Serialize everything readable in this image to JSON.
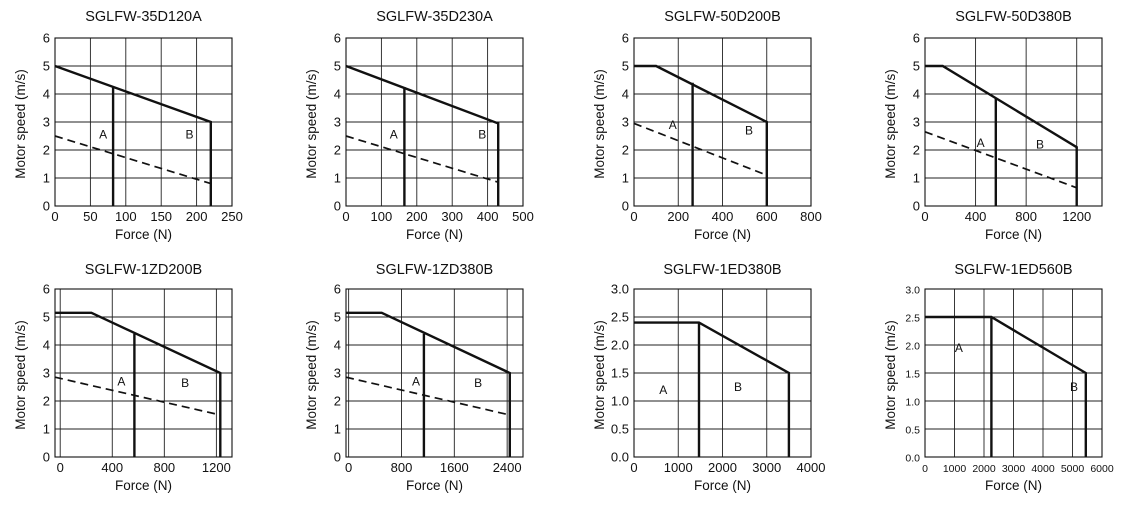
{
  "xlabel": "Force (N)",
  "ylabel": "Motor speed (m/s)",
  "chart_data": [
    {
      "type": "line",
      "title": "SGLFW-35D120A",
      "xlabel": "Force (N)",
      "ylabel": "Motor speed (m/s)",
      "xlim": [
        0,
        250
      ],
      "ylim": [
        0,
        6
      ],
      "xticks": [
        0,
        50,
        100,
        150,
        200,
        250
      ],
      "yticks": [
        0,
        1,
        2,
        3,
        4,
        5,
        6
      ],
      "ytick_decimals": 0,
      "grid": true,
      "tick_font_size": 13,
      "series": [
        {
          "style": "solid",
          "points": [
            [
              0,
              5
            ],
            [
              220,
              3
            ],
            [
              220,
              0
            ]
          ]
        },
        {
          "style": "solid",
          "points": [
            [
              82,
              4.25
            ],
            [
              82,
              0
            ]
          ]
        },
        {
          "style": "dashed",
          "points": [
            [
              0,
              2.5
            ],
            [
              220,
              0.8
            ]
          ]
        }
      ],
      "regions": [
        {
          "label": "A",
          "x": 68,
          "y": 2.55
        },
        {
          "label": "B",
          "x": 190,
          "y": 2.55
        }
      ]
    },
    {
      "type": "line",
      "title": "SGLFW-35D230A",
      "xlabel": "Force (N)",
      "ylabel": "Motor speed (m/s)",
      "xlim": [
        0,
        500
      ],
      "ylim": [
        0,
        6
      ],
      "xticks": [
        0,
        100,
        200,
        300,
        400,
        500
      ],
      "yticks": [
        0,
        1,
        2,
        3,
        4,
        5,
        6
      ],
      "ytick_decimals": 0,
      "grid": true,
      "tick_font_size": 13,
      "series": [
        {
          "style": "solid",
          "points": [
            [
              0,
              5
            ],
            [
              430,
              2.95
            ],
            [
              430,
              0
            ]
          ]
        },
        {
          "style": "solid",
          "points": [
            [
              165,
              4.25
            ],
            [
              165,
              0
            ]
          ]
        },
        {
          "style": "dashed",
          "points": [
            [
              0,
              2.5
            ],
            [
              430,
              0.85
            ]
          ]
        }
      ],
      "regions": [
        {
          "label": "A",
          "x": 135,
          "y": 2.55
        },
        {
          "label": "B",
          "x": 385,
          "y": 2.55
        }
      ]
    },
    {
      "type": "line",
      "title": "SGLFW-50D200B",
      "xlabel": "Force (N)",
      "ylabel": "Motor speed (m/s)",
      "xlim": [
        0,
        800
      ],
      "ylim": [
        0,
        6
      ],
      "xticks": [
        0,
        200,
        400,
        600,
        800
      ],
      "yticks": [
        0,
        1,
        2,
        3,
        4,
        5,
        6
      ],
      "ytick_decimals": 0,
      "grid": true,
      "tick_font_size": 13,
      "series": [
        {
          "style": "solid",
          "points": [
            [
              0,
              5
            ],
            [
              100,
              5
            ],
            [
              600,
              3
            ],
            [
              600,
              0
            ]
          ]
        },
        {
          "style": "solid",
          "points": [
            [
              265,
              4.4
            ],
            [
              265,
              0
            ]
          ]
        },
        {
          "style": "dashed",
          "points": [
            [
              0,
              2.95
            ],
            [
              600,
              1.1
            ]
          ]
        }
      ],
      "regions": [
        {
          "label": "A",
          "x": 175,
          "y": 2.9
        },
        {
          "label": "B",
          "x": 520,
          "y": 2.7
        }
      ]
    },
    {
      "type": "line",
      "title": "SGLFW-50D380B",
      "xlabel": "Force (N)",
      "ylabel": "Motor speed (m/s)",
      "xlim": [
        0,
        1400
      ],
      "ylim": [
        0,
        6
      ],
      "xticks": [
        0,
        400,
        800,
        1200
      ],
      "yticks": [
        0,
        1,
        2,
        3,
        4,
        5,
        6
      ],
      "ytick_decimals": 0,
      "grid": true,
      "tick_font_size": 13,
      "series": [
        {
          "style": "solid",
          "points": [
            [
              0,
              5
            ],
            [
              140,
              5
            ],
            [
              1200,
              2.1
            ],
            [
              1200,
              0
            ]
          ]
        },
        {
          "style": "solid",
          "points": [
            [
              560,
              3.85
            ],
            [
              560,
              0
            ]
          ]
        },
        {
          "style": "dashed",
          "points": [
            [
              0,
              2.65
            ],
            [
              1200,
              0.65
            ]
          ]
        }
      ],
      "regions": [
        {
          "label": "A",
          "x": 440,
          "y": 2.25
        },
        {
          "label": "B",
          "x": 910,
          "y": 2.2
        }
      ]
    },
    {
      "type": "line",
      "title": "SGLFW-1ZD200B",
      "xlabel": "Force (N)",
      "ylabel": "Motor speed (m/s)",
      "xlim": [
        -40,
        1320
      ],
      "ylim": [
        0,
        6
      ],
      "xticks": [
        0,
        400,
        800,
        1200
      ],
      "yticks": [
        0,
        1,
        2,
        3,
        4,
        5,
        6
      ],
      "ytick_decimals": 0,
      "grid": true,
      "tick_font_size": 13,
      "series": [
        {
          "style": "solid",
          "points": [
            [
              -40,
              5.15
            ],
            [
              240,
              5.15
            ],
            [
              1230,
              3
            ],
            [
              1230,
              0
            ]
          ]
        },
        {
          "style": "solid",
          "points": [
            [
              570,
              4.4
            ],
            [
              570,
              0
            ]
          ]
        },
        {
          "style": "dashed",
          "points": [
            [
              -40,
              2.85
            ],
            [
              1230,
              1.5
            ]
          ]
        }
      ],
      "regions": [
        {
          "label": "A",
          "x": 470,
          "y": 2.7
        },
        {
          "label": "B",
          "x": 960,
          "y": 2.65
        }
      ]
    },
    {
      "type": "line",
      "title": "SGLFW-1ZD380B",
      "xlabel": "Force (N)",
      "ylabel": "Motor speed (m/s)",
      "xlim": [
        -40,
        2640
      ],
      "ylim": [
        0,
        6
      ],
      "xticks": [
        0,
        800,
        1600,
        2400
      ],
      "yticks": [
        0,
        1,
        2,
        3,
        4,
        5,
        6
      ],
      "ytick_decimals": 0,
      "grid": true,
      "tick_font_size": 13,
      "series": [
        {
          "style": "solid",
          "points": [
            [
              -40,
              5.15
            ],
            [
              500,
              5.15
            ],
            [
              2440,
              3
            ],
            [
              2440,
              0
            ]
          ]
        },
        {
          "style": "solid",
          "points": [
            [
              1140,
              4.4
            ],
            [
              1140,
              0
            ]
          ]
        },
        {
          "style": "dashed",
          "points": [
            [
              -40,
              2.85
            ],
            [
              2440,
              1.5
            ]
          ]
        }
      ],
      "regions": [
        {
          "label": "A",
          "x": 1020,
          "y": 2.7
        },
        {
          "label": "B",
          "x": 1960,
          "y": 2.65
        }
      ]
    },
    {
      "type": "line",
      "title": "SGLFW-1ED380B",
      "xlabel": "Force (N)",
      "ylabel": "Motor speed (m/s)",
      "xlim": [
        0,
        4000
      ],
      "ylim": [
        0,
        3
      ],
      "xticks": [
        0,
        1000,
        2000,
        3000,
        4000
      ],
      "yticks": [
        0,
        0.5,
        1,
        1.5,
        2,
        2.5,
        3
      ],
      "ytick_decimals": 1,
      "grid": true,
      "tick_font_size": 13,
      "series": [
        {
          "style": "solid",
          "points": [
            [
              0,
              2.4
            ],
            [
              1470,
              2.4
            ],
            [
              3500,
              1.5
            ],
            [
              3500,
              0
            ]
          ]
        },
        {
          "style": "solid",
          "points": [
            [
              1470,
              2.4
            ],
            [
              1470,
              0
            ]
          ]
        }
      ],
      "regions": [
        {
          "label": "A",
          "x": 660,
          "y": 1.2
        },
        {
          "label": "B",
          "x": 2350,
          "y": 1.25
        }
      ]
    },
    {
      "type": "line",
      "title": "SGLFW-1ED560B",
      "xlabel": "Force (N)",
      "ylabel": "Motor speed (m/s)",
      "xlim": [
        0,
        6000
      ],
      "ylim": [
        0,
        3
      ],
      "xticks": [
        0,
        1000,
        2000,
        3000,
        4000,
        5000,
        6000
      ],
      "yticks": [
        0,
        0.5,
        1,
        1.5,
        2,
        2.5,
        3
      ],
      "ytick_decimals": 1,
      "grid": true,
      "tick_font_size": 10.5,
      "series": [
        {
          "style": "solid",
          "points": [
            [
              0,
              2.5
            ],
            [
              2250,
              2.5
            ],
            [
              5450,
              1.5
            ],
            [
              5450,
              0
            ]
          ]
        },
        {
          "style": "solid",
          "points": [
            [
              2250,
              2.5
            ],
            [
              2250,
              0
            ]
          ]
        }
      ],
      "regions": [
        {
          "label": "A",
          "x": 1150,
          "y": 1.95
        },
        {
          "label": "B",
          "x": 5050,
          "y": 1.25
        }
      ]
    }
  ]
}
